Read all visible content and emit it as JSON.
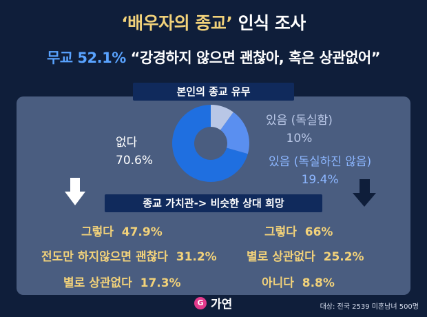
{
  "header": {
    "title_highlight": "‘배우자의 종교’",
    "title_rest": " 인식 조사",
    "subtitle_highlight": "무교 52.1%",
    "subtitle_rest": " “강경하지 않으면 괜찮아, 혹은 상관없어”"
  },
  "section1_label": "본인의 종교 유무",
  "section2_label": "종교 가치관-> 비슷한 상대 희망",
  "footer": {
    "brand": "가연",
    "note": "대상: 전국 2539 미혼남녀 500명"
  },
  "colors": {
    "background": "#0f1e3a",
    "panel": "#4a5d80",
    "pie_none": "#1f6fe0",
    "pie_devout": "#b9c7e6",
    "pie_not_devout": "#5a8ff0",
    "stat_text": "#f2d27a"
  },
  "chart_data": [
    {
      "type": "pie",
      "title": "본인의 종교 유무",
      "slices": [
        {
          "label": "없다",
          "value": 70.6,
          "display": "70.6%"
        },
        {
          "label": "있음 (독실함)",
          "value": 10,
          "display": "10%"
        },
        {
          "label": "있음 (독실하진 않음)",
          "value": 19.4,
          "display": "19.4%"
        }
      ]
    },
    {
      "type": "table",
      "title": "종교 가치관-> 비슷한 상대 희망",
      "columns": [
        {
          "direction": "down-arrow",
          "rows": [
            {
              "label": "그렇다",
              "value": "47.9%"
            },
            {
              "label": "전도만 하지않으면 괜찮다",
              "value": "31.2%"
            },
            {
              "label": "별로 상관없다",
              "value": "17.3%"
            }
          ]
        },
        {
          "direction": "down-arrow",
          "rows": [
            {
              "label": "그렇다",
              "value": "66%"
            },
            {
              "label": "별로 상관없다",
              "value": "25.2%"
            },
            {
              "label": "아니다",
              "value": "8.8%"
            }
          ]
        }
      ]
    }
  ]
}
